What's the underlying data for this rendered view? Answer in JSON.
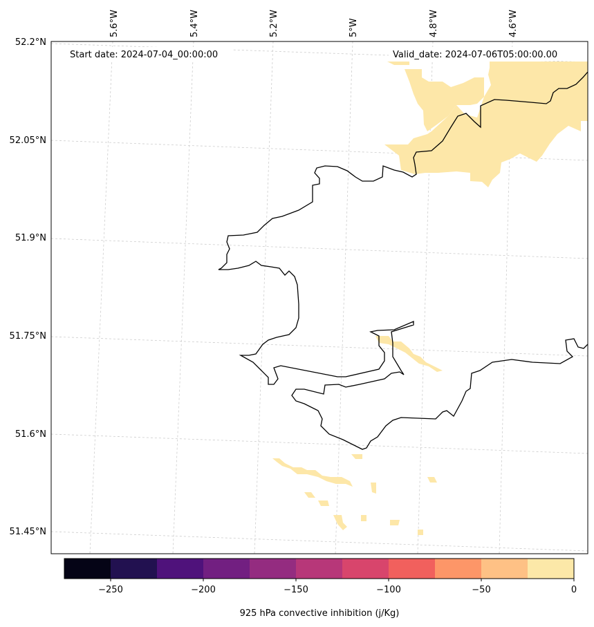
{
  "map": {
    "start_date": "Start date: 2024-07-04_00:00:00",
    "valid_date": "Valid_date: 2024-07-06T05:00:00.00",
    "lat_labels": [
      "52.2°N",
      "52.05°N",
      "51.9°N",
      "51.75°N",
      "51.6°N",
      "51.45°N"
    ],
    "lon_labels": [
      "5.6°W",
      "5.4°W",
      "5.2°W",
      "5°W",
      "4.8°W",
      "4.6°W"
    ],
    "fill_color": "#fde7a8",
    "coast_color": "#000000",
    "grid_color": "#cccccc"
  },
  "colorbar": {
    "label": "925 hPa convective inhibition (j/Kg)",
    "tick_labels": [
      "−250",
      "−200",
      "−150",
      "−100",
      "−50",
      "0"
    ],
    "colors": [
      "#050416",
      "#221150",
      "#4f127b",
      "#721f81",
      "#942c80",
      "#b73779",
      "#d8456c",
      "#f1605d",
      "#fd9668",
      "#fec185",
      "#fce8a8"
    ]
  }
}
